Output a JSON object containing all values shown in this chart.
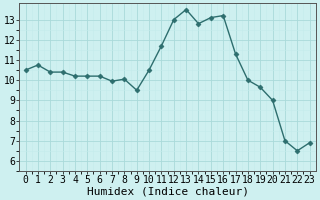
{
  "x": [
    0,
    1,
    2,
    3,
    4,
    5,
    6,
    7,
    8,
    9,
    10,
    11,
    12,
    13,
    14,
    15,
    16,
    17,
    18,
    19,
    20,
    21,
    22,
    23
  ],
  "y": [
    10.5,
    10.75,
    10.4,
    10.4,
    10.2,
    10.2,
    10.2,
    9.95,
    10.05,
    9.5,
    10.5,
    11.7,
    13.0,
    13.5,
    12.8,
    13.1,
    13.2,
    11.3,
    10.0,
    9.65,
    9.0,
    7.0,
    6.5,
    6.9
  ],
  "line_color": "#2d6e6e",
  "marker": "D",
  "markersize": 2.5,
  "linewidth": 1.0,
  "background_color": "#cef0f0",
  "grid_color_major": "#aadada",
  "grid_color_minor": "#c4ecec",
  "xlabel": "Humidex (Indice chaleur)",
  "xlabel_fontsize": 8,
  "ylim": [
    5.5,
    13.8
  ],
  "xlim": [
    -0.5,
    23.5
  ],
  "yticks": [
    6,
    7,
    8,
    9,
    10,
    11,
    12,
    13
  ],
  "xticks": [
    0,
    1,
    2,
    3,
    4,
    5,
    6,
    7,
    8,
    9,
    10,
    11,
    12,
    13,
    14,
    15,
    16,
    17,
    18,
    19,
    20,
    21,
    22,
    23
  ],
  "tick_fontsize": 7,
  "font_family": "monospace"
}
